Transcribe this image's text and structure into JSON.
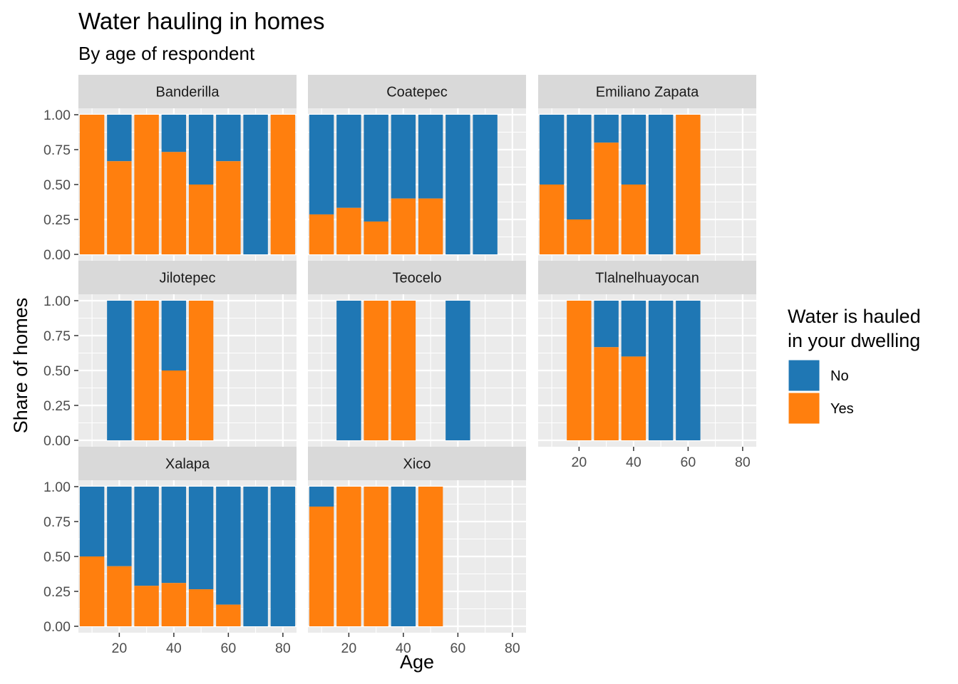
{
  "chart_data": {
    "type": "bar",
    "stacked": true,
    "title": "Water hauling in homes",
    "subtitle": "By age of respondent",
    "xlabel": "Age",
    "ylabel": "Share of homes",
    "xlim": [
      5,
      85
    ],
    "ylim": [
      0,
      1
    ],
    "x_ticks": [
      20,
      40,
      60,
      80
    ],
    "x_tick_labels": [
      "20",
      "40",
      "60",
      "80"
    ],
    "y_ticks": [
      0,
      0.25,
      0.5,
      0.75,
      1
    ],
    "y_tick_labels": [
      "0.00",
      "0.25",
      "0.50",
      "0.75",
      "1.00"
    ],
    "bin_width": 10,
    "grid": true,
    "legend": {
      "title_lines": [
        "Water is hauled",
        "in your dwelling"
      ],
      "placement": "right",
      "entries": [
        {
          "name": "No",
          "color": "#1f77b4"
        },
        {
          "name": "Yes",
          "color": "#ff7f0e"
        }
      ]
    },
    "colors": {
      "No": "#1f77b4",
      "Yes": "#ff7f0e"
    },
    "panels": [
      {
        "name": "Banderilla",
        "bars": [
          {
            "x": 10,
            "yes": 1.0
          },
          {
            "x": 20,
            "yes": 0.667
          },
          {
            "x": 30,
            "yes": 1.0
          },
          {
            "x": 40,
            "yes": 0.733
          },
          {
            "x": 50,
            "yes": 0.5
          },
          {
            "x": 60,
            "yes": 0.667
          },
          {
            "x": 70,
            "yes": 0.0
          },
          {
            "x": 80,
            "yes": 1.0
          }
        ]
      },
      {
        "name": "Coatepec",
        "bars": [
          {
            "x": 10,
            "yes": 0.286
          },
          {
            "x": 20,
            "yes": 0.333
          },
          {
            "x": 30,
            "yes": 0.235
          },
          {
            "x": 40,
            "yes": 0.4
          },
          {
            "x": 50,
            "yes": 0.4
          },
          {
            "x": 60,
            "yes": 0.0
          },
          {
            "x": 70,
            "yes": 0.0
          }
        ]
      },
      {
        "name": "Emiliano Zapata",
        "bars": [
          {
            "x": 10,
            "yes": 0.5
          },
          {
            "x": 20,
            "yes": 0.25
          },
          {
            "x": 30,
            "yes": 0.8
          },
          {
            "x": 40,
            "yes": 0.5
          },
          {
            "x": 50,
            "yes": 0.0
          },
          {
            "x": 60,
            "yes": 1.0
          }
        ]
      },
      {
        "name": "Jilotepec",
        "bars": [
          {
            "x": 20,
            "yes": 0.0
          },
          {
            "x": 30,
            "yes": 1.0
          },
          {
            "x": 40,
            "yes": 0.5
          },
          {
            "x": 50,
            "yes": 1.0
          }
        ]
      },
      {
        "name": "Teocelo",
        "bars": [
          {
            "x": 20,
            "yes": 0.0
          },
          {
            "x": 30,
            "yes": 1.0
          },
          {
            "x": 40,
            "yes": 1.0
          },
          {
            "x": 60,
            "yes": 0.0
          }
        ]
      },
      {
        "name": "Tlalnelhuayocan",
        "bars": [
          {
            "x": 20,
            "yes": 1.0
          },
          {
            "x": 30,
            "yes": 0.667
          },
          {
            "x": 40,
            "yes": 0.6
          },
          {
            "x": 50,
            "yes": 0.0
          },
          {
            "x": 60,
            "yes": 0.0
          }
        ]
      },
      {
        "name": "Xalapa",
        "bars": [
          {
            "x": 10,
            "yes": 0.5
          },
          {
            "x": 20,
            "yes": 0.43
          },
          {
            "x": 30,
            "yes": 0.29
          },
          {
            "x": 40,
            "yes": 0.31
          },
          {
            "x": 50,
            "yes": 0.265
          },
          {
            "x": 60,
            "yes": 0.155
          },
          {
            "x": 70,
            "yes": 0.0
          },
          {
            "x": 80,
            "yes": 0.0
          }
        ]
      },
      {
        "name": "Xico",
        "bars": [
          {
            "x": 10,
            "yes": 0.857
          },
          {
            "x": 20,
            "yes": 1.0
          },
          {
            "x": 30,
            "yes": 1.0
          },
          {
            "x": 40,
            "yes": 0.0
          },
          {
            "x": 50,
            "yes": 1.0
          }
        ]
      }
    ]
  }
}
